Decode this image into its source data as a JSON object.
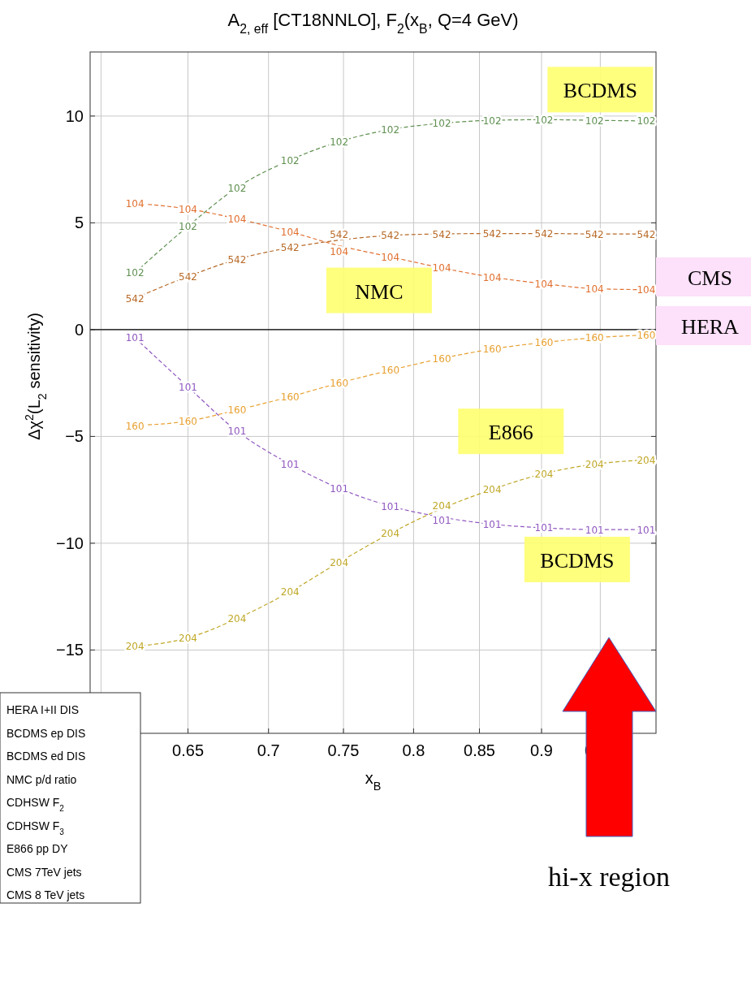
{
  "chart_data": {
    "type": "line",
    "title": "A$_{2, eff}$ [CT18NNLO], F$_{2}$(x$_{B}$, Q=4 GeV)",
    "xlabel": "x$_{B}$",
    "ylabel": "Δχ$^{2}$(L$_{2}$ sensitivity)",
    "x": [
      0.619,
      0.65,
      0.68,
      0.714,
      0.747,
      0.783,
      0.821,
      0.86,
      0.902,
      0.945,
      0.991
    ],
    "series": [
      {
        "name": "102",
        "color": "#5f9050",
        "values": [
          2.66,
          4.84,
          6.65,
          7.94,
          8.8,
          9.37,
          9.66,
          9.8,
          9.83,
          9.8,
          9.77
        ]
      },
      {
        "name": "104",
        "color": "#e07030",
        "values": [
          5.91,
          5.65,
          5.19,
          4.58,
          3.93,
          3.41,
          2.89,
          2.46,
          2.15,
          1.92,
          1.87
        ]
      },
      {
        "name": "542",
        "color": "#b86a28",
        "values": [
          1.47,
          2.49,
          3.29,
          3.84,
          4.19,
          4.41,
          4.48,
          4.5,
          4.5,
          4.48,
          4.48
        ]
      },
      {
        "name": "101",
        "color": "#9058c0",
        "values": [
          -0.38,
          -2.68,
          -4.75,
          -6.3,
          -7.43,
          -8.26,
          -8.78,
          -9.11,
          -9.28,
          -9.36,
          -9.36
        ]
      },
      {
        "name": "160",
        "color": "#e8a030",
        "values": [
          -4.49,
          -4.28,
          -3.76,
          -3.14,
          -2.5,
          -1.9,
          -1.35,
          -0.91,
          -0.6,
          -0.38,
          -0.25
        ]
      },
      {
        "name": "204",
        "color": "#c0a828",
        "values": [
          -14.83,
          -14.43,
          -13.53,
          -12.27,
          -10.89,
          -9.54,
          -8.38,
          -7.48,
          -6.74,
          -6.3,
          -6.1
        ]
      }
    ],
    "xlim": [
      0.594,
      1.0
    ],
    "log": "x",
    "xticks": [
      {
        "value": 0.6,
        "label": null
      },
      0.65,
      0.7,
      0.75,
      0.8,
      0.85,
      0.9,
      0.95
    ],
    "ylim": [
      -18.9,
      13
    ],
    "yticks": [
      {
        "value": -15,
        "label": "−15"
      },
      {
        "value": -10,
        "label": "−10"
      },
      {
        "value": -5,
        "label": "−5"
      },
      0,
      5,
      10
    ],
    "grid": true,
    "marker": "none",
    "line_style": "dashed",
    "ref_lines": [
      {
        "axis": "y",
        "value": 0,
        "color": "#000000"
      }
    ],
    "annotations": [
      "BCDMS",
      "NMC",
      "E866",
      "BCDMS",
      "CMS",
      "HERA",
      "hi-x region",
      "HERA I+II DIS",
      "BCDMS ep DIS",
      "BCDMS ed DIS",
      "NMC p/d ratio",
      "CDHSW F$_{2}$",
      "CDHSW F$_{3}$",
      "E866 pp DY",
      "CMS 7TeV jets",
      "CMS 8 TeV jets"
    ]
  }
}
